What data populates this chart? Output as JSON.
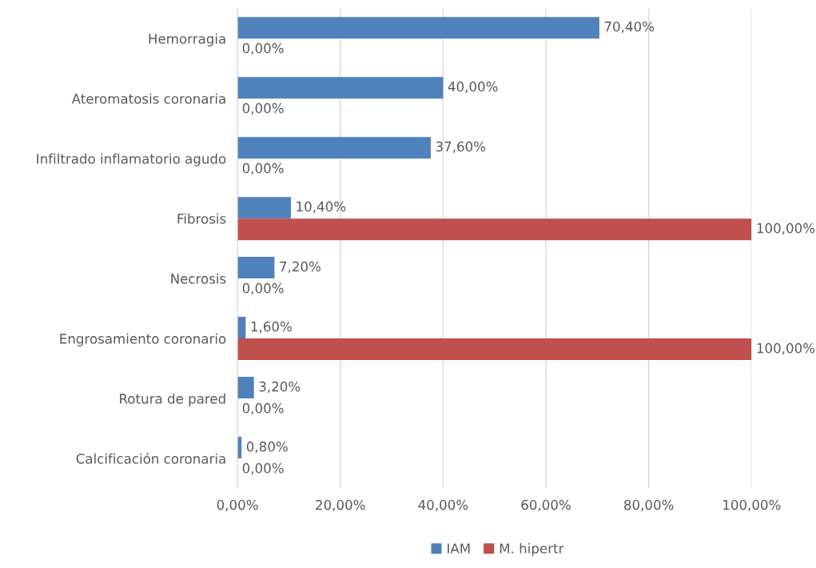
{
  "chart_data": {
    "type": "bar",
    "orientation": "horizontal",
    "categories": [
      "Hemorragia",
      "Ateromatosis coronaria",
      "Infiltrado inflamatorio agudo",
      "Fibrosis",
      "Necrosis",
      "Engrosamiento coronario",
      "Rotura de pared",
      "Calcificación coronaria"
    ],
    "series": [
      {
        "name": "IAM",
        "color": "#4f81bd",
        "values": [
          70.4,
          40,
          37.6,
          10.4,
          7.2,
          1.6,
          3.2,
          0.8
        ],
        "value_labels": [
          "70,40%",
          "40,00%",
          "37,60%",
          "10,40%",
          "7,20%",
          "1,60%",
          "3,20%",
          "0,80%"
        ]
      },
      {
        "name": "M. hipertr",
        "color": "#c0504d",
        "values": [
          0,
          0,
          0,
          100,
          0,
          100,
          0,
          0
        ],
        "value_labels": [
          "0,00%",
          "0,00%",
          "0,00%",
          "100,00%",
          "0,00%",
          "100,00%",
          "0,00%",
          "0,00%"
        ]
      }
    ],
    "xlim": [
      0,
      100
    ],
    "xticks": [
      {
        "value": 0,
        "label": "0,00%"
      },
      {
        "value": 20,
        "label": "20,00%"
      },
      {
        "value": 40,
        "label": "40,00%"
      },
      {
        "value": 60,
        "label": "60,00%"
      },
      {
        "value": 80,
        "label": "80,00%"
      },
      {
        "value": 100,
        "label": "100,00%"
      }
    ],
    "grid": "x",
    "legend": "bottom"
  }
}
